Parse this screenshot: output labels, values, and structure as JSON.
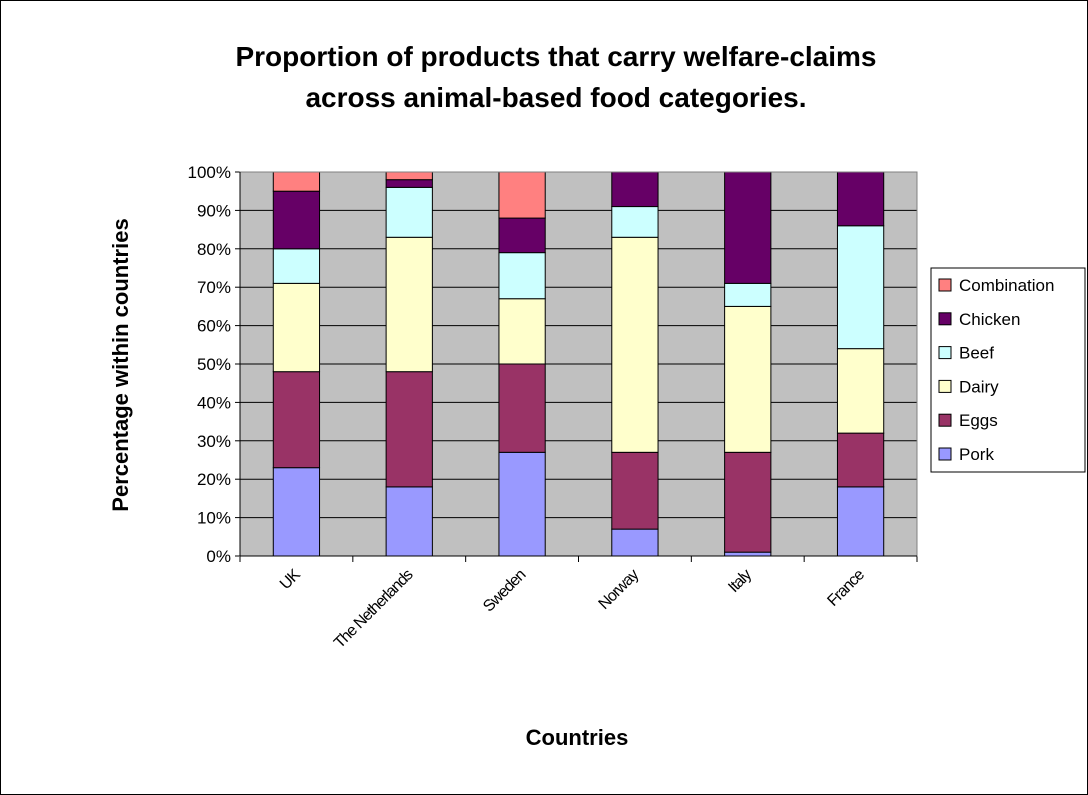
{
  "chart_data": {
    "type": "bar",
    "stacked": true,
    "normalized": true,
    "title_lines": [
      "Proportion of products that carry welfare-claims",
      "across animal-based food categories."
    ],
    "xlabel": "Countries",
    "ylabel": "Percentage within countries",
    "ylim": [
      0,
      100
    ],
    "ytick_labels": [
      "0%",
      "10%",
      "20%",
      "30%",
      "40%",
      "50%",
      "60%",
      "70%",
      "80%",
      "90%",
      "100%"
    ],
    "categories": [
      "UK",
      "The Netherlands",
      "Sweden",
      "Norway",
      "Italy",
      "France"
    ],
    "series": [
      {
        "name": "Pork",
        "color": "#9999ff",
        "values": [
          23,
          18,
          27,
          7,
          1,
          18
        ]
      },
      {
        "name": "Eggs",
        "color": "#993366",
        "values": [
          25,
          30,
          23,
          20,
          26,
          14
        ]
      },
      {
        "name": "Dairy",
        "color": "#ffffcc",
        "values": [
          23,
          35,
          17,
          56,
          38,
          22
        ]
      },
      {
        "name": "Beef",
        "color": "#ccffff",
        "values": [
          9,
          13,
          12,
          8,
          6,
          32
        ]
      },
      {
        "name": "Chicken",
        "color": "#660066",
        "values": [
          15,
          2,
          9,
          9,
          29,
          14
        ]
      },
      {
        "name": "Combination",
        "color": "#ff8080",
        "values": [
          5,
          2,
          12,
          0,
          0,
          0
        ]
      }
    ],
    "plot_background": "#c0c0c0",
    "grid": true,
    "legend_position": "right"
  }
}
